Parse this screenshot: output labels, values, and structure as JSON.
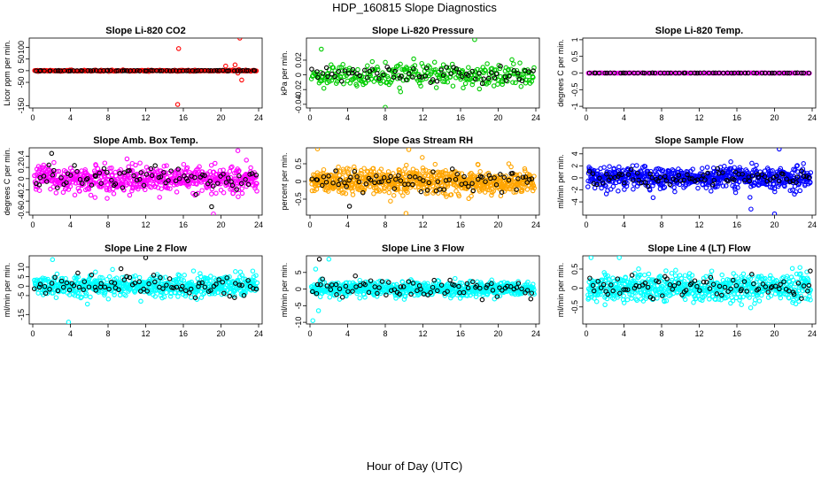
{
  "figure": {
    "title": "HDP_160815  Slope Diagnostics",
    "xlabel": "Hour of Day (UTC)"
  },
  "chart_data": [
    {
      "type": "scatter",
      "title": "Slope Li-820 CO2",
      "ylabel": "Licor ppm per min.",
      "xlim": [
        0,
        24
      ],
      "xticks": [
        0,
        4,
        8,
        12,
        16,
        20,
        24
      ],
      "ylim": [
        -160,
        140
      ],
      "yticks": [
        -150,
        -50,
        0,
        50,
        100
      ],
      "series": [
        {
          "name": "all",
          "color": "#ff0000",
          "n": 240,
          "spread": 2,
          "outliers": [
            [
              15.5,
              95
            ],
            [
              15.4,
              -145
            ],
            [
              20.5,
              20
            ],
            [
              21.5,
              25
            ],
            [
              21.8,
              -10
            ],
            [
              22.0,
              140
            ],
            [
              22.2,
              -40
            ],
            [
              21.9,
              5
            ]
          ]
        },
        {
          "name": "selected",
          "color": "#000000",
          "n": 70,
          "spread": 1.5,
          "outliers": []
        }
      ]
    },
    {
      "type": "scatter",
      "title": "Slope Li-820 Pressure",
      "ylabel": "kPa per min.",
      "xlim": [
        0,
        24
      ],
      "xticks": [
        0,
        4,
        8,
        12,
        16,
        20,
        24
      ],
      "ylim": [
        -0.045,
        0.05
      ],
      "yticks": [
        -0.04,
        -0.02,
        0,
        0.02
      ],
      "series": [
        {
          "name": "all",
          "color": "#00cc00",
          "n": 300,
          "spread": 0.013,
          "outliers": [
            [
              17.5,
              0.048
            ],
            [
              1.2,
              0.035
            ],
            [
              8.0,
              -0.044
            ]
          ]
        },
        {
          "name": "selected",
          "color": "#000000",
          "n": 70,
          "spread": 0.009,
          "outliers": []
        }
      ]
    },
    {
      "type": "scatter",
      "title": "Slope Li-820 Temp.",
      "ylabel": "degrees C per min.",
      "xlim": [
        0,
        24
      ],
      "xticks": [
        0,
        4,
        8,
        12,
        16,
        20,
        24
      ],
      "ylim": [
        -1.05,
        1.05
      ],
      "yticks": [
        -1,
        -0.5,
        0,
        0.5,
        1
      ],
      "series": [
        {
          "name": "all",
          "color": "#ff00ff",
          "n": 150,
          "spread": 0.003,
          "outliers": []
        },
        {
          "name": "selected",
          "color": "#000000",
          "n": 60,
          "spread": 0.003,
          "outliers": []
        }
      ]
    },
    {
      "type": "scatter",
      "title": "Slope Amb. Box Temp.",
      "ylabel": "degrees C per min.",
      "xlim": [
        0,
        24
      ],
      "xticks": [
        0,
        4,
        8,
        12,
        16,
        20,
        24
      ],
      "ylim": [
        -0.65,
        0.55
      ],
      "yticks": [
        -0.6,
        -0.4,
        -0.2,
        0,
        0.2,
        0.4
      ],
      "series": [
        {
          "name": "all",
          "color": "#ff00ff",
          "n": 600,
          "spread": 0.2,
          "outliers": [
            [
              21.8,
              0.5
            ],
            [
              19.2,
              -0.63
            ]
          ]
        },
        {
          "name": "selected",
          "color": "#000000",
          "n": 80,
          "spread": 0.17,
          "outliers": [
            [
              2.0,
              0.45
            ],
            [
              19.0,
              -0.5
            ]
          ]
        }
      ]
    },
    {
      "type": "scatter",
      "title": "Slope Gas Stream RH",
      "ylabel": "percent per min.",
      "xlim": [
        0,
        24
      ],
      "xticks": [
        0,
        4,
        8,
        12,
        16,
        20,
        24
      ],
      "ylim": [
        -0.95,
        0.95
      ],
      "yticks": [
        -0.5,
        0,
        0.5
      ],
      "series": [
        {
          "name": "all",
          "color": "#ffa500",
          "n": 700,
          "spread": 0.3,
          "outliers": [
            [
              0.8,
              0.92
            ],
            [
              10.5,
              0.9
            ],
            [
              10.2,
              -0.9
            ]
          ]
        },
        {
          "name": "selected",
          "color": "#000000",
          "n": 80,
          "spread": 0.25,
          "outliers": [
            [
              4.2,
              -0.7
            ]
          ]
        }
      ]
    },
    {
      "type": "scatter",
      "title": "Slope Sample Flow",
      "ylabel": "ml/min per min.",
      "xlim": [
        0,
        24
      ],
      "xticks": [
        0,
        4,
        8,
        12,
        16,
        20,
        24
      ],
      "ylim": [
        -6.2,
        5
      ],
      "yticks": [
        -4,
        -2,
        0,
        2,
        4
      ],
      "series": [
        {
          "name": "all",
          "color": "#0000ff",
          "n": 650,
          "spread": 1.6,
          "outliers": [
            [
              20.5,
              4.8
            ],
            [
              20.0,
              -6.0
            ],
            [
              17.5,
              -5.2
            ]
          ]
        },
        {
          "name": "selected",
          "color": "#000000",
          "n": 80,
          "spread": 1.0,
          "outliers": []
        }
      ]
    },
    {
      "type": "scatter",
      "title": "Slope Line 2 Flow",
      "ylabel": "ml/min per min.",
      "xlim": [
        0,
        24
      ],
      "xticks": [
        0,
        4,
        8,
        12,
        16,
        20,
        24
      ],
      "ylim": [
        -20,
        16
      ],
      "yticks": [
        -15,
        -5,
        0,
        5,
        10
      ],
      "series": [
        {
          "name": "all",
          "color": "#00ffff",
          "n": 650,
          "spread": 4.5,
          "outliers": [
            [
              2.1,
              14
            ],
            [
              3.8,
              -19
            ]
          ]
        },
        {
          "name": "selected",
          "color": "#000000",
          "n": 80,
          "spread": 4.5,
          "outliers": [
            [
              12.0,
              15
            ]
          ]
        }
      ]
    },
    {
      "type": "scatter",
      "title": "Slope Line 3 Flow",
      "ylabel": "ml/min per min.",
      "xlim": [
        0,
        24
      ],
      "xticks": [
        0,
        4,
        8,
        12,
        16,
        20,
        24
      ],
      "ylim": [
        -10.5,
        10
      ],
      "yticks": [
        -10,
        -5,
        0,
        5
      ],
      "series": [
        {
          "name": "all",
          "color": "#00ffff",
          "n": 650,
          "spread": 1.8,
          "outliers": [
            [
              2.0,
              9.0
            ],
            [
              0.3,
              -9.5
            ],
            [
              0.6,
              6.0
            ],
            [
              0.9,
              -6.5
            ],
            [
              1.2,
              3.0
            ]
          ]
        },
        {
          "name": "selected",
          "color": "#000000",
          "n": 80,
          "spread": 2.6,
          "outliers": [
            [
              1.0,
              9.0
            ]
          ]
        }
      ]
    },
    {
      "type": "scatter",
      "title": "Slope Line 4 (LT) Flow",
      "ylabel": "ml/min per min.",
      "xlim": [
        0,
        24
      ],
      "xticks": [
        0,
        4,
        8,
        12,
        16,
        20,
        24
      ],
      "ylim": [
        -0.95,
        0.85
      ],
      "yticks": [
        -0.5,
        0,
        0.5
      ],
      "series": [
        {
          "name": "all",
          "color": "#00ffff",
          "n": 650,
          "spread": 0.3,
          "outliers": [
            [
              0.5,
              0.8
            ],
            [
              3.5,
              0.8
            ]
          ]
        },
        {
          "name": "selected",
          "color": "#000000",
          "n": 80,
          "spread": 0.25,
          "outliers": [
            [
              23.8,
              0.45
            ]
          ]
        }
      ]
    }
  ]
}
